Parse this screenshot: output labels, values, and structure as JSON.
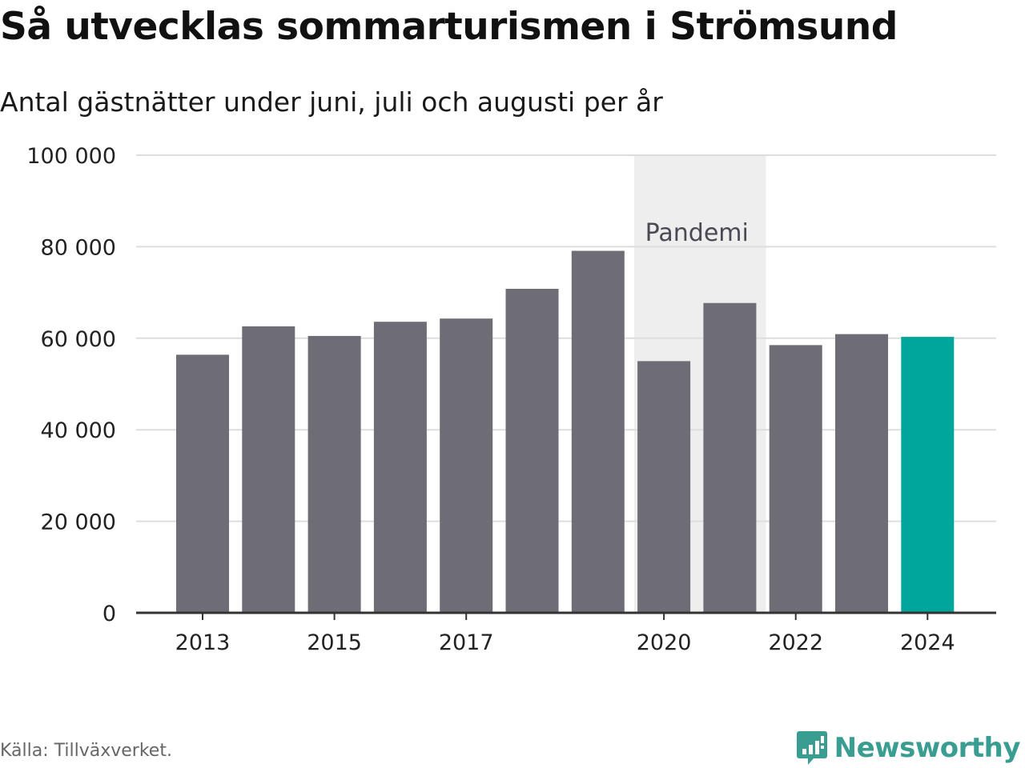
{
  "header": {
    "title": "Så utvecklas sommarturismen i Strömsund",
    "subtitle": "Antal gästnätter under juni, juli och augusti per år"
  },
  "footer": {
    "source": "Källa: Tillväxverket.",
    "brand": "Newsworthy",
    "brand_icon": "bar-chart-speech-bubble-icon"
  },
  "chart_data": {
    "type": "bar",
    "categories": [
      "2013",
      "2014",
      "2015",
      "2016",
      "2017",
      "2018",
      "2019",
      "2020",
      "2021",
      "2022",
      "2023",
      "2024"
    ],
    "values": [
      56400,
      62600,
      60500,
      63600,
      64300,
      70800,
      79100,
      55000,
      67700,
      58500,
      60900,
      60300
    ],
    "x_tick_labels": [
      "2013",
      "2015",
      "2017",
      "2020",
      "2022",
      "2024"
    ],
    "y_ticks": [
      0,
      20000,
      40000,
      60000,
      80000,
      100000
    ],
    "y_tick_labels": [
      "0",
      "20 000",
      "40 000",
      "60 000",
      "80 000",
      "100 000"
    ],
    "ylim": [
      0,
      100000
    ],
    "grid": true,
    "highlight_category": "2024",
    "annotations": [
      {
        "label": "Pandemi",
        "from": "2020",
        "to": "2021"
      }
    ],
    "colors": {
      "bar": "#6e6d75",
      "highlight": "#00a699",
      "band": "#eeeeee",
      "grid": "#dddddd",
      "axis": "#333333",
      "annotation_text": "#4a4a55"
    }
  }
}
